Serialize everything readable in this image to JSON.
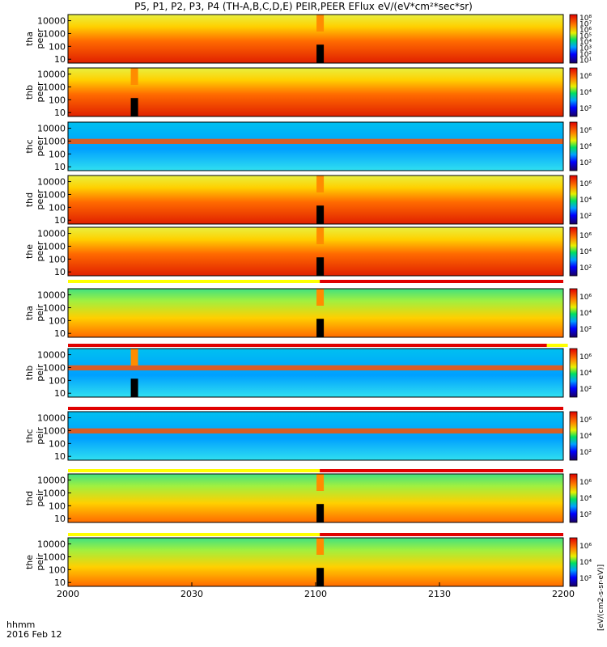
{
  "title": "P5, P1, P2, P3, P4 (TH-A,B,C,D,E) PEIR,PEER EFlux eV/(eV*cm²*sec*sr)",
  "footer": {
    "time_label": "hhmm",
    "date_label": "2016 Feb 12"
  },
  "colors": {
    "black": "#000000",
    "background": "#ffffff",
    "flag_red": "#e00000",
    "flag_yellow": "#ffff00"
  },
  "chart_data": {
    "type": "heatmap",
    "x_axis": {
      "range": [
        "2000",
        "2200"
      ],
      "ticks": [
        "2000",
        "2030",
        "2100",
        "2130",
        "2200"
      ],
      "unit": "hhmm"
    },
    "y_axis": {
      "scale": "log",
      "range": [
        5,
        30000
      ],
      "ticks": [
        10,
        100,
        1000,
        10000
      ]
    },
    "data_gap_times": [
      "2016",
      "2101"
    ],
    "panels": [
      {
        "label": "tha peer",
        "y_tick_labels": [
          "10",
          "100",
          "1000",
          "10000"
        ],
        "colorbar": {
          "scale": "log",
          "range": [
            1,
            100000000.0
          ],
          "tick_labels": [
            "10¹",
            "10²",
            "10³",
            "10⁴",
            "10⁵",
            "10⁶",
            "10⁷",
            "10⁸"
          ]
        },
        "gap": "2101",
        "flag_bar": null
      },
      {
        "label": "thb peer",
        "y_tick_labels": [
          "10",
          "100",
          "1000",
          "10000"
        ],
        "colorbar": {
          "scale": "log",
          "range": [
            10,
            10000000.0
          ],
          "tick_labels": [
            "10²",
            "10⁴",
            "10⁶"
          ]
        },
        "gap": "2016",
        "flag_bar": null
      },
      {
        "label": "thc peer",
        "y_tick_labels": [
          "10",
          "100",
          "1000",
          "10000"
        ],
        "colorbar": {
          "scale": "log",
          "range": [
            10,
            10000000.0
          ],
          "tick_labels": [
            "10²",
            "10⁴",
            "10⁶"
          ]
        },
        "gap": null,
        "flag_bar": null
      },
      {
        "label": "thd peer",
        "y_tick_labels": [
          "10",
          "100",
          "1000",
          "10000"
        ],
        "colorbar": {
          "scale": "log",
          "range": [
            10,
            100000000.0
          ],
          "tick_labels": [
            "10²",
            "10⁴",
            "10⁶"
          ]
        },
        "gap": "2101",
        "flag_bar": null
      },
      {
        "label": "the peer",
        "y_tick_labels": [
          "10",
          "100",
          "1000",
          "10000"
        ],
        "colorbar": {
          "scale": "log",
          "range": [
            10,
            10000000.0
          ],
          "tick_labels": [
            "10²",
            "10⁴",
            "10⁶"
          ]
        },
        "gap": "2101",
        "flag_bar": "yellow until 2101, red after"
      },
      {
        "label": "tha peir",
        "y_tick_labels": [
          "10",
          "100",
          "1000",
          "10000"
        ],
        "colorbar": {
          "scale": "log",
          "range": [
            10,
            10000000.0
          ],
          "tick_labels": [
            "10²",
            "10⁴",
            "10⁶"
          ]
        },
        "gap": "2101",
        "flag_bar": "red with yellow segment near 2150"
      },
      {
        "label": "thb peir",
        "y_tick_labels": [
          "10",
          "100",
          "1000",
          "10000"
        ],
        "colorbar": {
          "scale": "log",
          "range": [
            10,
            10000000.0
          ],
          "tick_labels": [
            "10²",
            "10⁴",
            "10⁶"
          ]
        },
        "gap": "2016",
        "flag_bar": "red"
      },
      {
        "label": "thc peir",
        "y_tick_labels": [
          "10",
          "100",
          "1000",
          "10000"
        ],
        "colorbar": {
          "scale": "log",
          "range": [
            10,
            10000000.0
          ],
          "tick_labels": [
            "10²",
            "10⁴",
            "10⁶"
          ]
        },
        "gap": null,
        "flag_bar": "yellow until 2101, red after"
      },
      {
        "label": "thd peir",
        "y_tick_labels": [
          "10",
          "100",
          "1000",
          "10000"
        ],
        "colorbar": {
          "scale": "log",
          "range": [
            10,
            10000000.0
          ],
          "tick_labels": [
            "10²",
            "10⁴",
            "10⁶"
          ]
        },
        "gap": "2101",
        "flag_bar": "yellow until 2101, red after"
      },
      {
        "label": "the peir",
        "y_tick_labels": [
          "10",
          "100",
          "1000",
          "10000"
        ],
        "colorbar": {
          "scale": "log",
          "range": [
            10,
            10000000.0
          ],
          "tick_labels": [
            "10²",
            "10⁴",
            "10⁶"
          ]
        },
        "gap": "2101",
        "flag_bar": null
      }
    ],
    "colorbar_units_text": "[eV/(cm2-s-sr-eV)]",
    "grid": false,
    "legend": "colorbars at right"
  }
}
